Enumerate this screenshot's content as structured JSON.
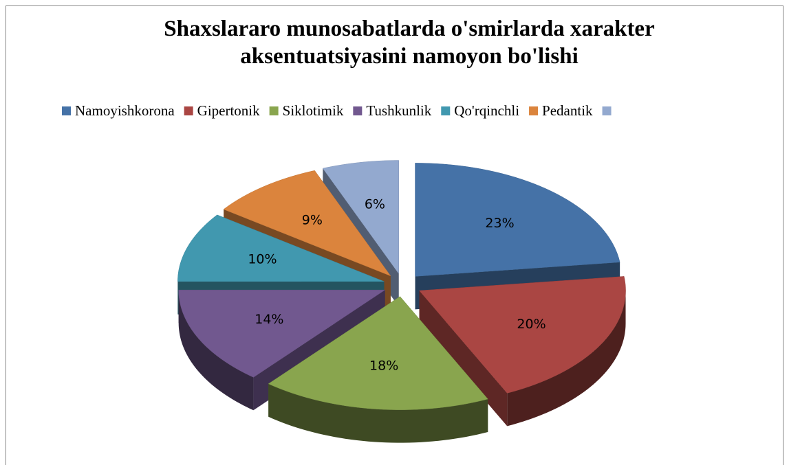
{
  "chart_data": {
    "type": "pie",
    "title": "Shaxslararo munosabatlarda o'smirlarda xarakter aksentuatsiyasini namoyon bo'lishi",
    "categories": [
      "Namoyishkorona",
      "Gipertonik",
      "Siklotimik",
      "Tushkunlik",
      "Qo'rqinchli",
      "Pedantik",
      null
    ],
    "values": [
      23,
      20,
      18,
      14,
      10,
      9,
      6
    ],
    "value_labels": [
      "23%",
      "20%",
      "18%",
      "14%",
      "10%",
      "9%",
      "6%"
    ],
    "colors": [
      "#4572a7",
      "#aa4643",
      "#89a54e",
      "#71588f",
      "#4198af",
      "#db843d",
      "#93a9cf"
    ],
    "legend": "top"
  }
}
